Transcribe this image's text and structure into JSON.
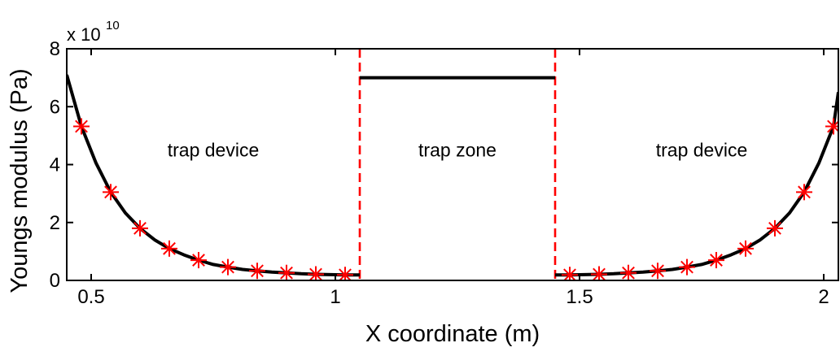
{
  "chart_data": {
    "type": "line",
    "xlabel": "X coordinate (m)",
    "ylabel": "Youngs modulus (Pa)",
    "y_multiplier": {
      "base": "x 10",
      "exponent": "10"
    },
    "xlim": [
      0.45,
      2.03
    ],
    "ylim": [
      0,
      8
    ],
    "grid": false,
    "x_ticks": [
      {
        "value": 0.5,
        "label": "0.5"
      },
      {
        "value": 1.0,
        "label": "1"
      },
      {
        "value": 1.5,
        "label": "1.5"
      },
      {
        "value": 2.0,
        "label": "2"
      }
    ],
    "y_ticks": [
      {
        "value": 0,
        "label": "0"
      },
      {
        "value": 2,
        "label": "2"
      },
      {
        "value": 4,
        "label": "4"
      },
      {
        "value": 6,
        "label": "6"
      },
      {
        "value": 8,
        "label": "8"
      }
    ],
    "series": [
      {
        "kind": "line",
        "color": "#000000",
        "segments": [
          {
            "x": [
              0.45,
              0.48,
              0.51,
              0.54,
              0.57,
              0.6,
              0.63,
              0.66,
              0.69,
              0.72,
              0.75,
              0.78,
              0.81,
              0.84,
              0.87,
              0.9,
              0.93,
              0.96,
              0.99,
              1.02,
              1.05
            ],
            "y": [
              7.1,
              5.32,
              4.05,
              3.05,
              2.33,
              1.8,
              1.4,
              1.1,
              0.88,
              0.7,
              0.55,
              0.46,
              0.38,
              0.33,
              0.29,
              0.26,
              0.23,
              0.21,
              0.2,
              0.19,
              0.19
            ]
          },
          {
            "x": [
              1.05,
              1.45
            ],
            "y": [
              7.0,
              7.0
            ]
          },
          {
            "x": [
              1.45,
              1.48,
              1.51,
              1.54,
              1.57,
              1.6,
              1.63,
              1.66,
              1.69,
              1.72,
              1.75,
              1.78,
              1.81,
              1.84,
              1.87,
              1.9,
              1.93,
              1.96,
              1.99,
              2.02,
              2.03
            ],
            "y": [
              0.19,
              0.19,
              0.2,
              0.21,
              0.23,
              0.26,
              0.29,
              0.33,
              0.38,
              0.46,
              0.55,
              0.7,
              0.88,
              1.1,
              1.4,
              1.8,
              2.33,
              3.05,
              4.05,
              5.32,
              6.5
            ]
          }
        ]
      },
      {
        "kind": "marker",
        "marker": "asterisk",
        "color": "#ff0000",
        "x": [
          0.48,
          0.54,
          0.6,
          0.66,
          0.72,
          0.78,
          0.84,
          0.9,
          0.96,
          1.02,
          1.48,
          1.54,
          1.6,
          1.66,
          1.72,
          1.78,
          1.84,
          1.9,
          1.96,
          2.02
        ],
        "y": [
          5.32,
          3.05,
          1.8,
          1.1,
          0.7,
          0.46,
          0.33,
          0.26,
          0.21,
          0.19,
          0.19,
          0.21,
          0.26,
          0.33,
          0.46,
          0.7,
          1.1,
          1.8,
          3.05,
          5.32
        ]
      }
    ],
    "vlines": [
      {
        "x": 1.05,
        "color": "#ff0000",
        "style": "dashed"
      },
      {
        "x": 1.45,
        "color": "#ff0000",
        "style": "dashed"
      }
    ],
    "annotations": [
      {
        "text": "trap device",
        "x": 0.75,
        "y": 4.5
      },
      {
        "text": "trap zone",
        "x": 1.25,
        "y": 4.5
      },
      {
        "text": "trap device",
        "x": 1.75,
        "y": 4.5
      }
    ]
  }
}
